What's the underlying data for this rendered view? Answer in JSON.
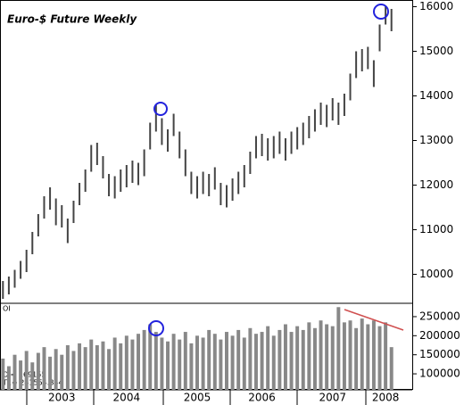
{
  "chart_data": [
    {
      "type": "range-bar",
      "title": "Euro-$ Future Weekly",
      "title_color": "#8b0000",
      "color": "#444444",
      "high": [
        9850,
        9950,
        10100,
        10300,
        10550,
        10950,
        11350,
        11750,
        11950,
        11700,
        11550,
        11250,
        11650,
        12050,
        12350,
        12900,
        12950,
        12650,
        12250,
        12200,
        12350,
        12450,
        12550,
        12500,
        12800,
        13400,
        13800,
        13500,
        13250,
        13600,
        13200,
        12800,
        12300,
        12200,
        12300,
        12250,
        12400,
        12050,
        12000,
        12150,
        12300,
        12450,
        12750,
        13100,
        13150,
        13050,
        13100,
        13200,
        13050,
        13200,
        13300,
        13400,
        13550,
        13700,
        13850,
        13800,
        13950,
        13850,
        14050,
        14500,
        15000,
        15050,
        15100,
        14800,
        15600,
        16000,
        15950
      ],
      "low": [
        9450,
        9550,
        9700,
        9900,
        10050,
        10450,
        10850,
        11250,
        11450,
        11100,
        11050,
        10700,
        11150,
        11550,
        11850,
        12300,
        12450,
        12150,
        11750,
        11700,
        11850,
        11950,
        12050,
        12000,
        12200,
        12800,
        13200,
        12900,
        12750,
        13100,
        12600,
        12200,
        11800,
        11700,
        11800,
        11750,
        11900,
        11550,
        11500,
        11650,
        11800,
        11950,
        12250,
        12600,
        12650,
        12550,
        12600,
        12700,
        12550,
        12700,
        12800,
        12900,
        13050,
        13200,
        13350,
        13300,
        13450,
        13350,
        13550,
        13900,
        14400,
        14550,
        14600,
        14200,
        15000,
        15600,
        15450
      ],
      "ylim": [
        9350,
        16150
      ],
      "yticks": [
        10000,
        11000,
        12000,
        13000,
        14000,
        15000,
        16000
      ]
    },
    {
      "type": "bar",
      "label": "OI",
      "annotations": [
        "OI= 169155",
        "T1= 241554.844"
      ],
      "color": "#888888",
      "categories": [
        null,
        null,
        null,
        null,
        null,
        null,
        null,
        null,
        null,
        null,
        "2003",
        null,
        null,
        null,
        null,
        null,
        null,
        null,
        null,
        null,
        null,
        "2004",
        null,
        null,
        null,
        null,
        null,
        null,
        null,
        null,
        null,
        null,
        null,
        "2005",
        null,
        null,
        null,
        null,
        null,
        null,
        null,
        null,
        null,
        null,
        "2006",
        null,
        null,
        null,
        null,
        null,
        null,
        null,
        null,
        null,
        null,
        null,
        "2007",
        null,
        null,
        null,
        null,
        null,
        null,
        null,
        null,
        "2008",
        null
      ],
      "values": [
        140000,
        120000,
        150000,
        135000,
        160000,
        130000,
        155000,
        170000,
        145000,
        165000,
        150000,
        175000,
        160000,
        180000,
        170000,
        190000,
        175000,
        185000,
        165000,
        195000,
        180000,
        200000,
        190000,
        205000,
        215000,
        230000,
        210000,
        195000,
        185000,
        205000,
        190000,
        210000,
        180000,
        200000,
        195000,
        215000,
        205000,
        190000,
        210000,
        200000,
        215000,
        195000,
        220000,
        205000,
        210000,
        225000,
        200000,
        215000,
        230000,
        210000,
        225000,
        215000,
        235000,
        220000,
        240000,
        230000,
        225000,
        275000,
        235000,
        240000,
        220000,
        245000,
        230000,
        240000,
        225000,
        235000,
        170000
      ],
      "ylim": [
        58000,
        285000
      ],
      "yticks": [
        100000,
        150000,
        200000,
        250000
      ]
    }
  ]
}
